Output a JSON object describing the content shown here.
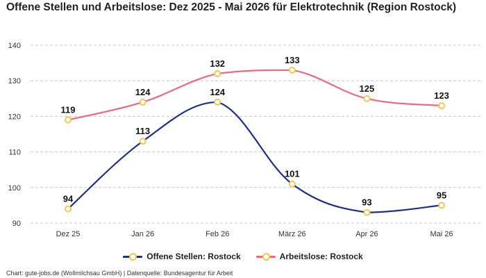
{
  "chart_data": {
    "type": "line",
    "title": "Offene Stellen und Arbeitslose: Dez 2025 - Mai 2026 für Elektrotechnik (Region Rostock)",
    "categories": [
      "Dez 25",
      "Jan 26",
      "Feb 26",
      "März 26",
      "Apr 26",
      "Mai 26"
    ],
    "series": [
      {
        "name": "Offene Stellen: Rostock",
        "values": [
          94,
          113,
          124,
          101,
          93,
          95
        ],
        "color": "#1f2f86"
      },
      {
        "name": "Arbeitslose: Rostock",
        "values": [
          119,
          124,
          132,
          133,
          125,
          123
        ],
        "color": "#f0687f"
      }
    ],
    "ylim": [
      90,
      140
    ],
    "yticks": [
      "90",
      "100",
      "110",
      "120",
      "130",
      "140"
    ],
    "marker_color": "#f5c242",
    "grid": true,
    "grid_style": "dashed",
    "legend_position": "bottom",
    "xlabel": "",
    "ylabel": ""
  },
  "caption": "Chart: gute-jobs.de (Wollmilchsau GmbH) | Datenquelle: Bundesagentur für Arbeit"
}
